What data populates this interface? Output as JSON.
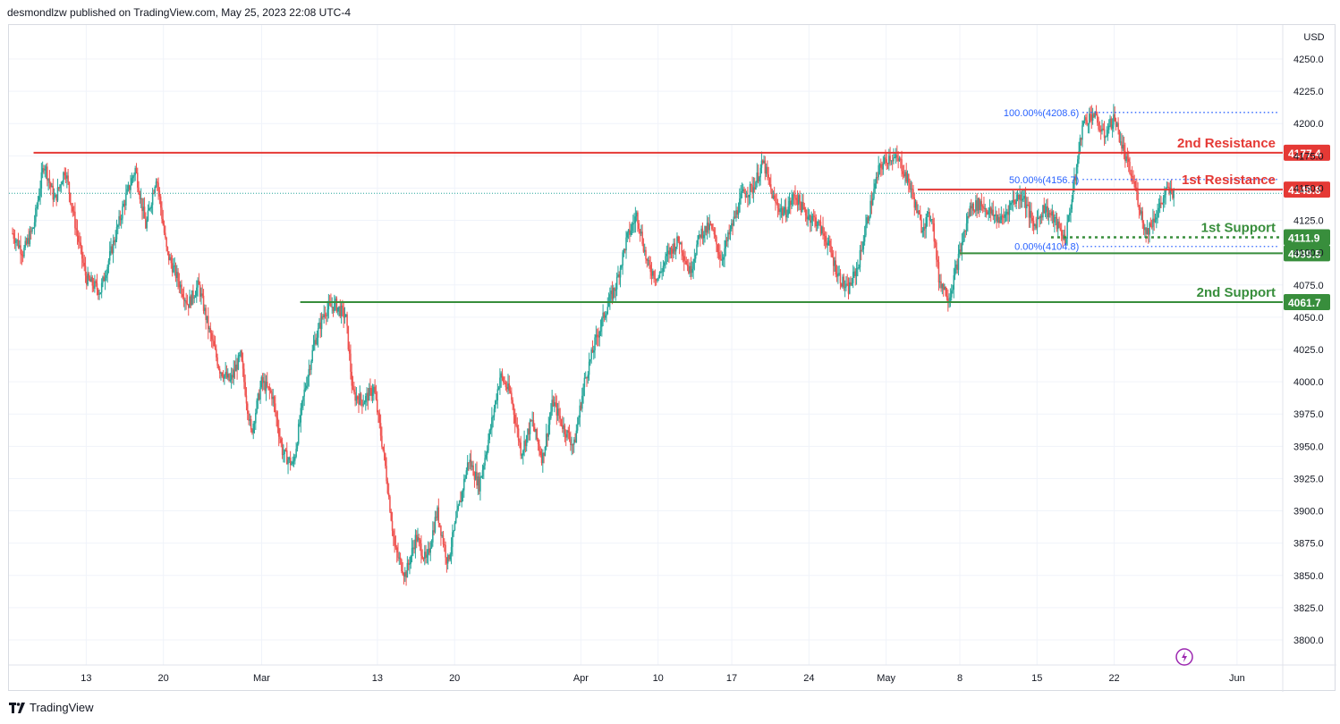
{
  "header": {
    "published_text": "desmondlzw published on TradingView.com, May 25, 2023 22:08 UTC-4"
  },
  "footer": {
    "brand_label": "TradingView",
    "logo_icon": "tradingview-logo-icon"
  },
  "colors": {
    "up": "#26a69a",
    "down": "#ef5350",
    "resistance": "#e53935",
    "support": "#388e3c",
    "fib": "#2962ff",
    "grid": "#f0f3fa",
    "axis_text": "#131722",
    "lightning_accent": "#9c27b0"
  },
  "chart_data": {
    "type": "candlestick",
    "currency": "USD",
    "y_ticks": [
      4250.0,
      4225.0,
      4200.0,
      4175.0,
      4150.0,
      4125.0,
      4100.0,
      4075.0,
      4050.0,
      4025.0,
      4000.0,
      3975.0,
      3950.0,
      3925.0,
      3900.0,
      3875.0,
      3850.0,
      3825.0,
      3800.0
    ],
    "ylim": [
      3800,
      4270
    ],
    "x_tick_labels": [
      "13",
      "20",
      "Mar",
      "13",
      "20",
      "Apr",
      "10",
      "17",
      "24",
      "May",
      "8",
      "15",
      "22",
      "Jun"
    ],
    "levels": [
      {
        "name": "2nd Resistance",
        "value": 4177.4,
        "label": "4177.4",
        "kind": "resistance"
      },
      {
        "name": "1st Resistance",
        "value": 4148.8,
        "label": "4148.8",
        "kind": "resistance"
      },
      {
        "name": "1st Support",
        "value": 4111.9,
        "label": "4111.9",
        "kind": "support"
      },
      {
        "name": "",
        "value": 4099.5,
        "label": "4099.5",
        "kind": "support"
      },
      {
        "name": "2nd Support",
        "value": 4061.7,
        "label": "4061.7",
        "kind": "support"
      }
    ],
    "fibonacci": [
      {
        "label": "100.00%(4208.6)",
        "value": 4208.6
      },
      {
        "label": "50.00%(4156.7)",
        "value": 4156.7
      },
      {
        "label": "0.00%(4104.8)",
        "value": 4104.8
      }
    ],
    "current_price": 4146.0,
    "price_path": [
      [
        0,
        4115
      ],
      [
        3,
        4100
      ],
      [
        6,
        4120
      ],
      [
        9,
        4170
      ],
      [
        12,
        4140
      ],
      [
        15,
        4165
      ],
      [
        18,
        4120
      ],
      [
        21,
        4080
      ],
      [
        25,
        4070
      ],
      [
        29,
        4110
      ],
      [
        32,
        4140
      ],
      [
        35,
        4165
      ],
      [
        38,
        4120
      ],
      [
        41,
        4160
      ],
      [
        44,
        4100
      ],
      [
        47,
        4080
      ],
      [
        50,
        4060
      ],
      [
        53,
        4075
      ],
      [
        56,
        4040
      ],
      [
        59,
        4010
      ],
      [
        62,
        4000
      ],
      [
        65,
        4020
      ],
      [
        68,
        3960
      ],
      [
        71,
        4000
      ],
      [
        74,
        3990
      ],
      [
        77,
        3945
      ],
      [
        80,
        3935
      ],
      [
        83,
        3990
      ],
      [
        86,
        4030
      ],
      [
        89,
        4055
      ],
      [
        92,
        4060
      ],
      [
        95,
        4050
      ],
      [
        97,
        3990
      ],
      [
        100,
        3985
      ],
      [
        103,
        3995
      ],
      [
        106,
        3940
      ],
      [
        109,
        3870
      ],
      [
        112,
        3850
      ],
      [
        115,
        3880
      ],
      [
        118,
        3860
      ],
      [
        121,
        3900
      ],
      [
        124,
        3860
      ],
      [
        127,
        3900
      ],
      [
        130,
        3940
      ],
      [
        133,
        3920
      ],
      [
        136,
        3960
      ],
      [
        139,
        4005
      ],
      [
        142,
        3990
      ],
      [
        145,
        3945
      ],
      [
        148,
        3970
      ],
      [
        151,
        3940
      ],
      [
        154,
        3985
      ],
      [
        157,
        3965
      ],
      [
        160,
        3950
      ],
      [
        163,
        4000
      ],
      [
        166,
        4030
      ],
      [
        169,
        4055
      ],
      [
        172,
        4075
      ],
      [
        175,
        4110
      ],
      [
        178,
        4130
      ],
      [
        181,
        4090
      ],
      [
        184,
        4080
      ],
      [
        187,
        4100
      ],
      [
        190,
        4110
      ],
      [
        193,
        4085
      ],
      [
        196,
        4115
      ],
      [
        199,
        4120
      ],
      [
        202,
        4095
      ],
      [
        205,
        4120
      ],
      [
        208,
        4145
      ],
      [
        211,
        4150
      ],
      [
        214,
        4170
      ],
      [
        217,
        4140
      ],
      [
        220,
        4130
      ],
      [
        223,
        4145
      ],
      [
        226,
        4130
      ],
      [
        229,
        4125
      ],
      [
        232,
        4110
      ],
      [
        235,
        4085
      ],
      [
        238,
        4070
      ],
      [
        241,
        4090
      ],
      [
        244,
        4130
      ],
      [
        247,
        4165
      ],
      [
        250,
        4175
      ],
      [
        253,
        4170
      ],
      [
        256,
        4150
      ],
      [
        259,
        4120
      ],
      [
        262,
        4130
      ],
      [
        264,
        4080
      ],
      [
        267,
        4065
      ],
      [
        270,
        4100
      ],
      [
        273,
        4135
      ],
      [
        276,
        4138
      ],
      [
        279,
        4130
      ],
      [
        282,
        4125
      ],
      [
        285,
        4140
      ],
      [
        288,
        4145
      ],
      [
        291,
        4120
      ],
      [
        294,
        4135
      ],
      [
        297,
        4125
      ],
      [
        300,
        4110
      ],
      [
        303,
        4160
      ],
      [
        305,
        4200
      ],
      [
        308,
        4208
      ],
      [
        311,
        4190
      ],
      [
        314,
        4205
      ],
      [
        317,
        4175
      ],
      [
        320,
        4150
      ],
      [
        323,
        4115
      ],
      [
        326,
        4130
      ],
      [
        329,
        4148
      ],
      [
        331,
        4146
      ]
    ],
    "x_range": [
      0,
      360
    ],
    "x_tick_positions": [
      21,
      43,
      71,
      104,
      126,
      162,
      184,
      205,
      227,
      249,
      270,
      292,
      314,
      349
    ]
  }
}
